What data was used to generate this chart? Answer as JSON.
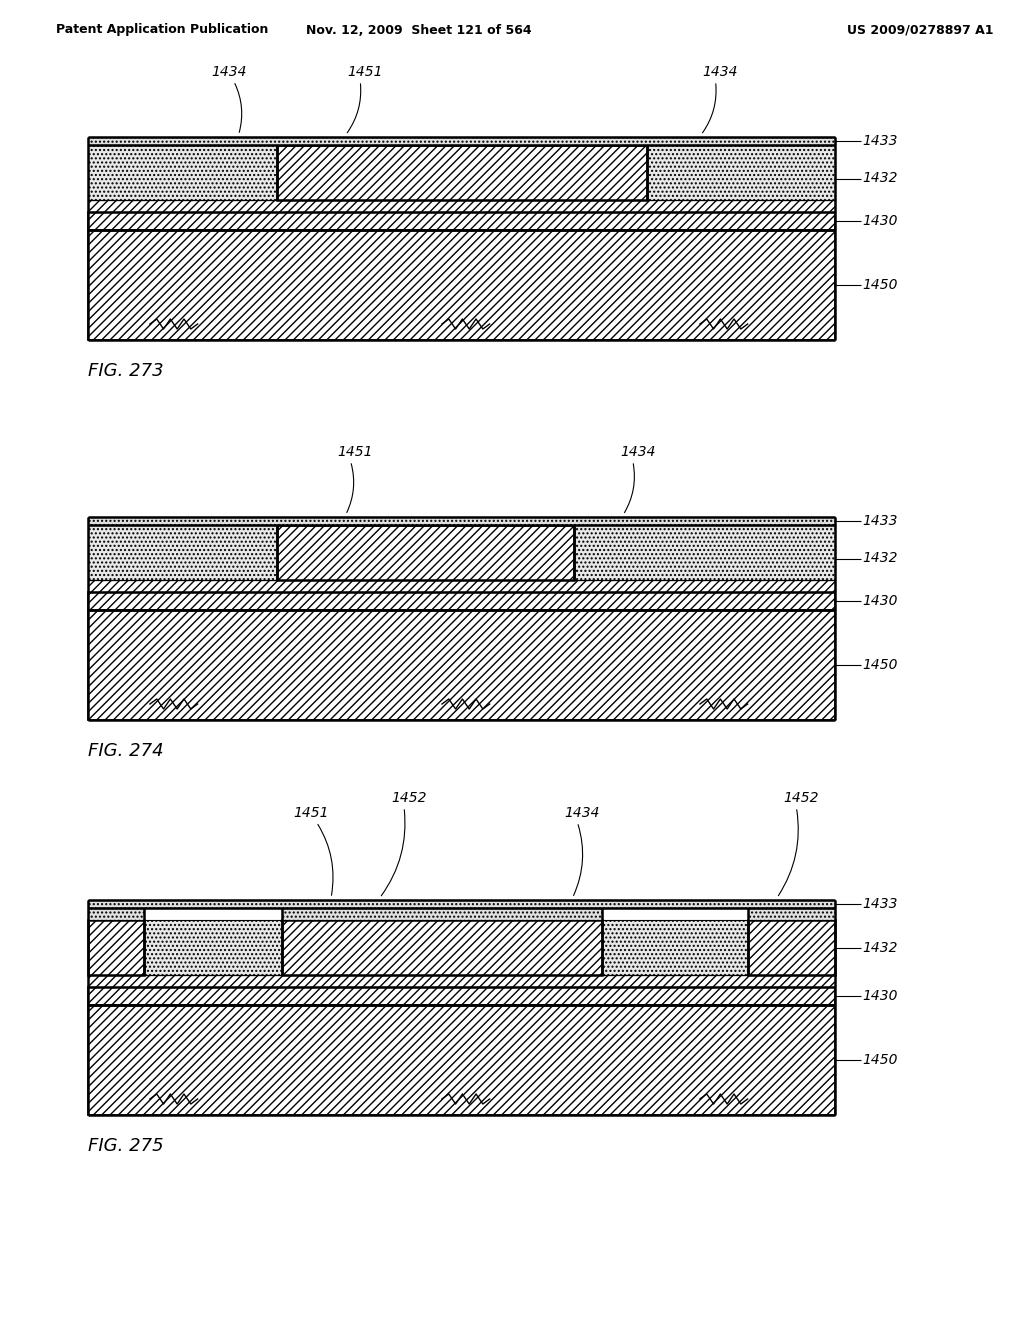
{
  "header_left": "Patent Application Publication",
  "header_mid": "Nov. 12, 2009  Sheet 121 of 564",
  "header_right": "US 2009/0278897 A1",
  "bg_color": "#ffffff",
  "fig_labels": [
    "FIG. 273",
    "FIG. 274",
    "FIG. 275"
  ]
}
